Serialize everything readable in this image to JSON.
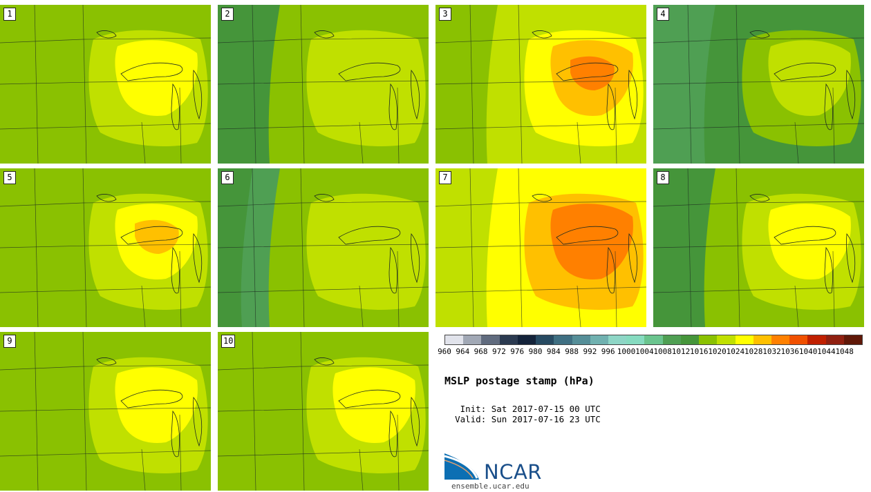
{
  "figure": {
    "title": "MSLP postage stamp (hPa)",
    "init_label": "Init:",
    "init_value": "Sat 2017-07-15 00 UTC",
    "valid_label": "Valid:",
    "valid_value": "Sun 2017-07-16 23 UTC",
    "units": "hPa"
  },
  "members": [
    {
      "label": "1",
      "background_level": 1016,
      "pressure_levels": [
        1016,
        1020,
        1024
      ]
    },
    {
      "label": "2",
      "background_level": 1016,
      "pressure_levels": [
        1012,
        1016,
        1020
      ]
    },
    {
      "label": "3",
      "background_level": 1020,
      "pressure_levels": [
        1016,
        1020,
        1024,
        1028,
        1032
      ]
    },
    {
      "label": "4",
      "background_level": 1012,
      "pressure_levels": [
        1008,
        1012,
        1016,
        1020
      ]
    },
    {
      "label": "5",
      "background_level": 1016,
      "pressure_levels": [
        1016,
        1020,
        1024,
        1028
      ]
    },
    {
      "label": "6",
      "background_level": 1016,
      "pressure_levels": [
        1008,
        1012,
        1016,
        1020
      ]
    },
    {
      "label": "7",
      "background_level": 1024,
      "pressure_levels": [
        1020,
        1024,
        1028,
        1032
      ]
    },
    {
      "label": "8",
      "background_level": 1016,
      "pressure_levels": [
        1012,
        1016,
        1020,
        1024
      ]
    },
    {
      "label": "9",
      "background_level": 1016,
      "pressure_levels": [
        1016,
        1020,
        1024
      ]
    },
    {
      "label": "10",
      "background_level": 1016,
      "pressure_levels": [
        1016,
        1020,
        1024
      ]
    }
  ],
  "colorbar": {
    "levels": [
      960,
      964,
      968,
      972,
      976,
      980,
      984,
      988,
      992,
      996,
      1000,
      1004,
      1008,
      1012,
      1016,
      1020,
      1024,
      1028,
      1032,
      1036,
      1040,
      1044,
      1048
    ],
    "tick_labels": [
      "960",
      "964",
      "968",
      "972",
      "976",
      "980",
      "984",
      "988",
      "992",
      "996",
      "1000",
      "1004",
      "1008",
      "1012",
      "1016",
      "1020",
      "1024",
      "1028",
      "1032",
      "1036",
      "1040",
      "1044",
      "1048"
    ],
    "colors": [
      "#e1e3eb",
      "#a1a8b5",
      "#606b7e",
      "#2b3a50",
      "#14233a",
      "#274a62",
      "#3f6f82",
      "#558e98",
      "#70b1b0",
      "#8ed6c6",
      "#86dbc0",
      "#6ac48e",
      "#4f9f53",
      "#45953a",
      "#8ac101",
      "#c0e000",
      "#ffff00",
      "#ffc000",
      "#ff8000",
      "#f05000",
      "#c02000",
      "#902010",
      "#601808"
    ]
  },
  "logo": {
    "wordmark": "NCAR",
    "site": "ensemble.ucar.edu"
  }
}
